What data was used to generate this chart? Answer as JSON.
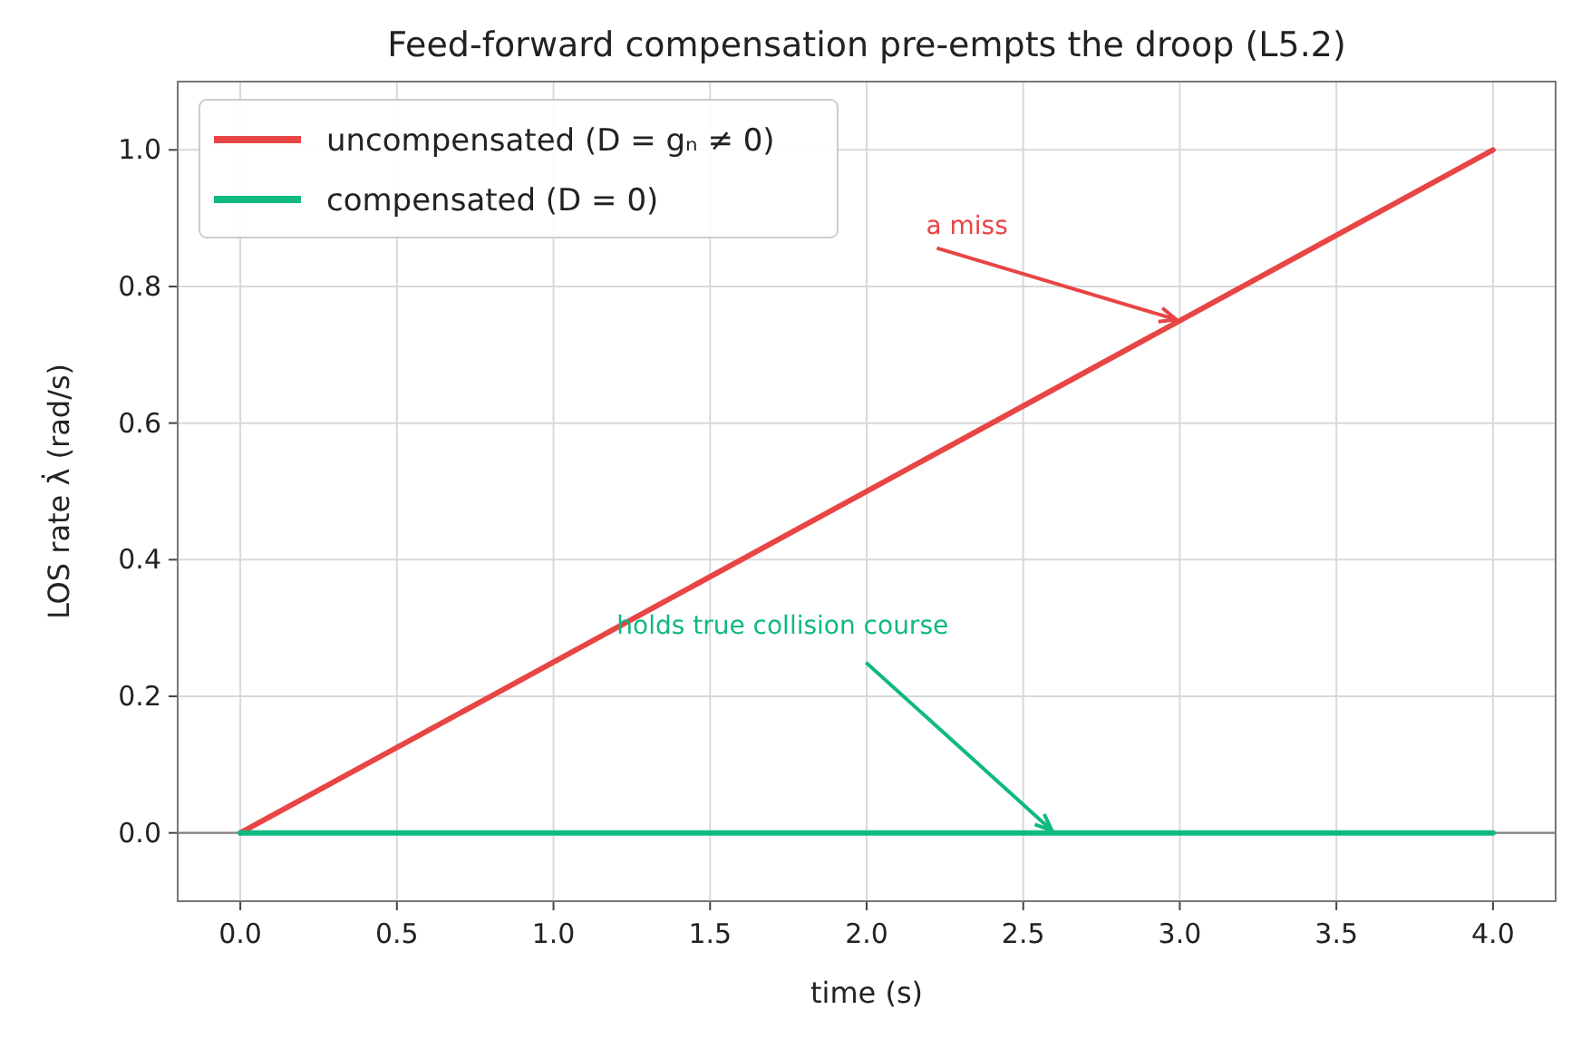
{
  "chart_data": {
    "type": "line",
    "title": "Feed-forward compensation pre-empts the droop (L5.2)",
    "xlabel": "time (s)",
    "ylabel": "LOS rate  λ̇  (rad/s)",
    "x": [
      0,
      4
    ],
    "series": [
      {
        "name": "uncompensated (D = gₙ ≠ 0)",
        "color": "#e84545",
        "values": [
          0,
          1
        ]
      },
      {
        "name": "compensated (D = 0)",
        "color": "#10b981",
        "values": [
          0,
          0
        ]
      }
    ],
    "xlim": [
      -0.2,
      4.2
    ],
    "ylim": [
      -0.1,
      1.1
    ],
    "xticks": [
      {
        "value": 0,
        "label": "0.0"
      },
      {
        "value": 0.5,
        "label": "0.5"
      },
      {
        "value": 1,
        "label": "1.0"
      },
      {
        "value": 1.5,
        "label": "1.5"
      },
      {
        "value": 2,
        "label": "2.0"
      },
      {
        "value": 2.5,
        "label": "2.5"
      },
      {
        "value": 3,
        "label": "3.0"
      },
      {
        "value": 3.5,
        "label": "3.5"
      },
      {
        "value": 4,
        "label": "4.0"
      }
    ],
    "yticks": [
      {
        "value": 0,
        "label": "0.0"
      },
      {
        "value": 0.2,
        "label": "0.2"
      },
      {
        "value": 0.4,
        "label": "0.4"
      },
      {
        "value": 0.6,
        "label": "0.6"
      },
      {
        "value": 0.8,
        "label": "0.8"
      },
      {
        "value": 1,
        "label": "1.0"
      }
    ],
    "ref_lines": [
      {
        "axis": "y",
        "value": 0,
        "color": "#808080"
      }
    ],
    "annotations": [
      {
        "text": "a miss",
        "x": 3.0,
        "y": 0.75
      },
      {
        "text": "holds true collision course",
        "x": 2.6,
        "y": 0
      }
    ],
    "grid": true,
    "legend": "top left",
    "line_style": "solid",
    "marker": "none"
  }
}
